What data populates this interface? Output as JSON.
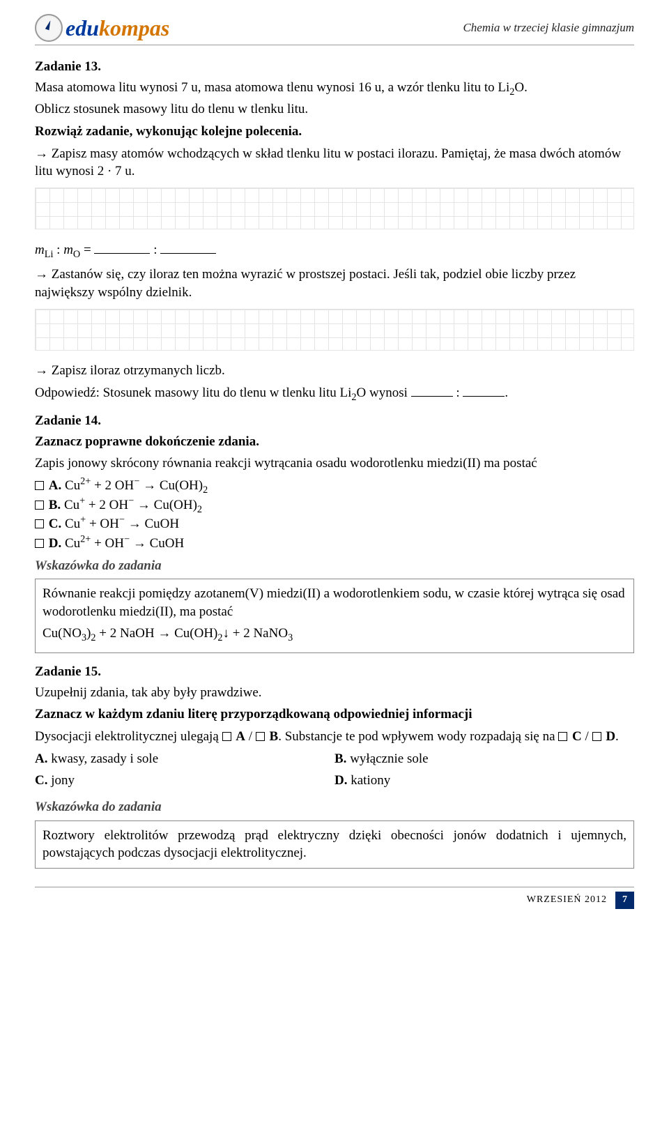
{
  "header": {
    "logo_prefix": "edu",
    "logo_suffix": "kompas",
    "subject": "Chemia w trzeciej klasie gimnazjum"
  },
  "task13": {
    "title": "Zadanie 13.",
    "intro": "Masa atomowa litu wynosi 7 u, masa atomowa tlenu wynosi 16 u, a wzór tlenku litu to Li",
    "intro2": "O.",
    "obl": "Oblicz stosunek masowy litu do tlenu w tlenku litu.",
    "rozw": "Rozwiąż zadanie, wykonując kolejne polecenia.",
    "step1": "→ Zapisz masy atomów wchodzących w skład tlenku litu w postaci ilorazu. Pamiętaj, że masa dwóch atomów litu wynosi 2 · 7 u.",
    "ratio_prefix": "m",
    "ratio_li": "Li",
    "ratio_mid": " : m",
    "ratio_o": "O",
    "ratio_eq": " = ",
    "step2": "→ Zastanów się, czy iloraz ten można wyrazić w prostszej postaci. Jeśli tak, podziel obie liczby przez największy wspólny dzielnik.",
    "step3": "→ Zapisz iloraz otrzymanych liczb.",
    "answer_prefix": "Odpowiedź: Stosunek masowy litu do tlenu w tlenku litu Li",
    "answer_mid": "O wynosi "
  },
  "task14": {
    "title": "Zadanie 14.",
    "instr": "Zaznacz poprawne dokończenie zdania.",
    "stem": "Zapis jonowy skrócony równania reakcji wytrącania osadu wodorotlenku miedzi(II) ma postać",
    "A_label": "A.",
    "B_label": "B.",
    "C_label": "C.",
    "D_label": "D.",
    "hint_label": "Wskazówka do zadania",
    "hint_p1": "Równanie reakcji pomiędzy azotanem(V) miedzi(II) a wodorotlenkiem sodu, w czasie której wytrąca się osad wodorotlenku miedzi(II), ma postać"
  },
  "task15": {
    "title": "Zadanie 15.",
    "instr1": "Uzupełnij zdania, tak aby były prawdziwe.",
    "instr2": "Zaznacz w każdym zdaniu literę przyporządkowaną odpowiedniej informacji",
    "sent_p1": "Dysocjacji elektrolitycznej ulegają ",
    "sent_p2": ". Substancje te pod wpływem wody rozpadają się na ",
    "sent_p3": ".",
    "A": "A. kwasy, zasady i sole",
    "B": "B. wyłącznie sole",
    "C": "C. jony",
    "D": "D. kationy",
    "hint_label": "Wskazówka do zadania",
    "hint": "Roztwory elektrolitów przewodzą prąd elektryczny dzięki obecności jonów dodatnich i ujemnych, powstających podczas dysocjacji elektrolitycznej."
  },
  "footer": {
    "date": "WRZESIEŃ 2012",
    "page": "7"
  }
}
